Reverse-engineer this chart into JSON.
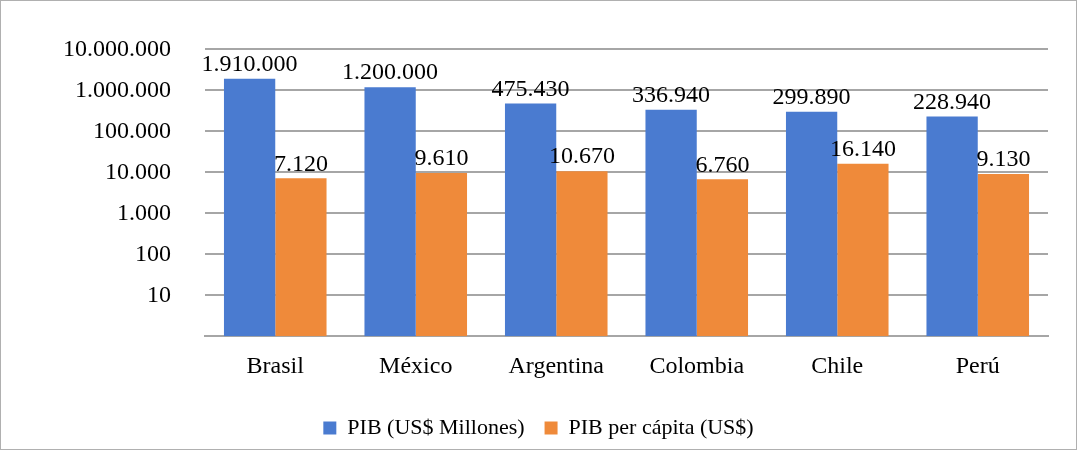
{
  "chart_data": {
    "type": "bar",
    "categories": [
      "Brasil",
      "México",
      "Argentina",
      "Colombia",
      "Chile",
      "Perú"
    ],
    "series": [
      {
        "name": "PIB (US$ Millones)",
        "color": "#4a7bd0",
        "values": [
          1910000,
          1200000,
          475430,
          336940,
          299890,
          228940
        ],
        "value_labels": [
          "1.910.000",
          "1.200.000",
          "475.430",
          "336.940",
          "299.890",
          "228.940"
        ]
      },
      {
        "name": "PIB per cápita (US$)",
        "color": "#ef8a3a",
        "values": [
          7120,
          9610,
          10670,
          6760,
          16140,
          9130
        ],
        "value_labels": [
          "7.120",
          "9.610",
          "10.670",
          "6.760",
          "16.140",
          "9.130"
        ]
      }
    ],
    "log": true,
    "ylim": [
      1,
      10000000
    ],
    "yticks": [
      10,
      100,
      {
        "value": 1000,
        "label": "1.000"
      },
      {
        "value": 10000,
        "label": "10.000"
      },
      {
        "value": 100000,
        "label": "100.000"
      },
      {
        "value": 1000000,
        "label": "1.000.000"
      },
      {
        "value": 10000000,
        "label": "10.000.000"
      }
    ],
    "grid": "y",
    "legend": "bottom"
  }
}
